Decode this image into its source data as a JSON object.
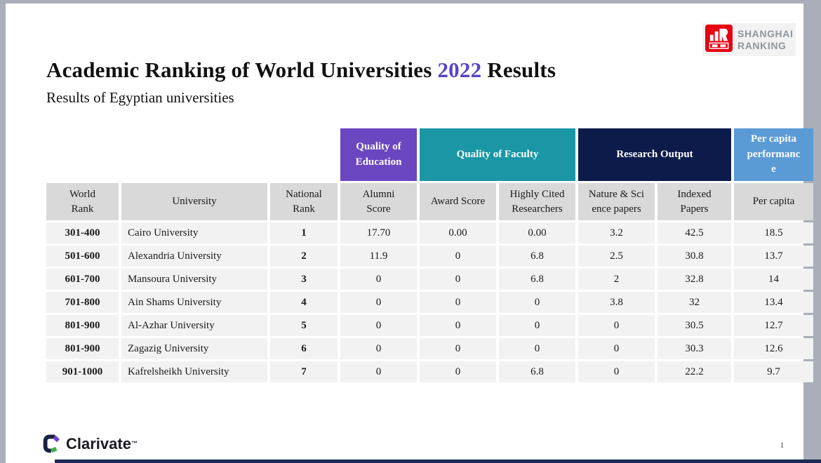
{
  "slide": {
    "title": {
      "prefix": "Academic Ranking of World Universities ",
      "year": "2022",
      "suffix": " Results"
    },
    "subtitle": "Results of Egyptian universities",
    "page_number": "1"
  },
  "branding": {
    "shanghai": {
      "line1": "SHANGHAI",
      "line2": "RANKING",
      "icon_color": "#e60012",
      "text_color": "#8f959e"
    },
    "clarivate": {
      "name": "Clarivate",
      "tm": "™",
      "navy": "#1b2240",
      "purple": "#6e44c9",
      "green": "#3fae49"
    }
  },
  "table": {
    "bands": [
      {
        "label_lines": [
          "Quality of",
          "Education"
        ],
        "color": "#6b46c1",
        "col_start": 4,
        "col_span": 1
      },
      {
        "label_lines": [
          "Quality of Faculty"
        ],
        "color": "#1a96a5",
        "col_start": 5,
        "col_span": 2
      },
      {
        "label_lines": [
          "Research Output"
        ],
        "color": "#0d1b4b",
        "col_start": 7,
        "col_span": 2
      },
      {
        "label_lines": [
          "Per capita",
          "performanc",
          "e"
        ],
        "color": "#5b9bd5",
        "col_start": 9,
        "col_span": 1
      }
    ],
    "columns": [
      {
        "id": "world-rank",
        "lines": [
          "World",
          "Rank"
        ]
      },
      {
        "id": "university",
        "lines": [
          "University"
        ]
      },
      {
        "id": "national-rank",
        "lines": [
          "National",
          "Rank"
        ]
      },
      {
        "id": "alumni-score",
        "lines": [
          "Alumni",
          "Score"
        ]
      },
      {
        "id": "award-score",
        "lines": [
          "Award Score"
        ]
      },
      {
        "id": "highly-cited-researchers",
        "lines": [
          "Highly Cited",
          "Researchers"
        ]
      },
      {
        "id": "nature-science-papers",
        "lines": [
          "Nature & Sci",
          "ence papers"
        ]
      },
      {
        "id": "indexed-papers",
        "lines": [
          "Indexed",
          "Papers"
        ]
      },
      {
        "id": "per-capita",
        "lines": [
          "Per capita"
        ]
      }
    ],
    "rows": [
      [
        "301-400",
        "Cairo University",
        "1",
        "17.70",
        "0.00",
        "0.00",
        "3.2",
        "42.5",
        "18.5"
      ],
      [
        "501-600",
        "Alexandria University",
        "2",
        "11.9",
        "0",
        "6.8",
        "2.5",
        "30.8",
        "13.7"
      ],
      [
        "601-700",
        "Mansoura University",
        "3",
        "0",
        "0",
        "6.8",
        "2",
        "32.8",
        "14"
      ],
      [
        "701-800",
        "Ain Shams University",
        "4",
        "0",
        "0",
        "0",
        "3.8",
        "32",
        "13.4"
      ],
      [
        "801-900",
        "Al-Azhar University",
        "5",
        "0",
        "0",
        "0",
        "0",
        "30.5",
        "12.7"
      ],
      [
        "801-900",
        "Zagazig University",
        "6",
        "0",
        "0",
        "0",
        "0",
        "30.3",
        "12.6"
      ],
      [
        "901-1000",
        "Kafrelsheikh University",
        "7",
        "0",
        "0",
        "6.8",
        "0",
        "22.2",
        "9.7"
      ]
    ],
    "colors": {
      "header_bg": "#d9d9d9",
      "row_bg": "#f2f2f2"
    }
  }
}
